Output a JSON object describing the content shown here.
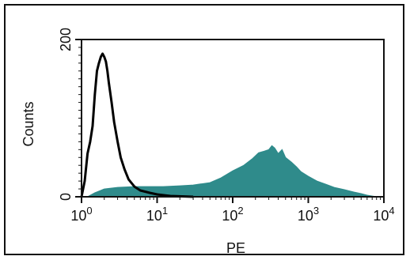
{
  "chart_data": {
    "type": "area",
    "title": "",
    "xlabel": "PE",
    "ylabel": "Counts",
    "x_scale": "log",
    "xlim": [
      1,
      10000
    ],
    "ylim": [
      0,
      200
    ],
    "x_ticks": [
      {
        "value": 1,
        "base": "10",
        "exp": "0"
      },
      {
        "value": 10,
        "base": "10",
        "exp": "1"
      },
      {
        "value": 100,
        "base": "10",
        "exp": "2"
      },
      {
        "value": 1000,
        "base": "10",
        "exp": "3"
      },
      {
        "value": 10000,
        "base": "10",
        "exp": "4"
      }
    ],
    "y_ticks": [
      {
        "value": 0,
        "label": "0"
      },
      {
        "value": 200,
        "label": "200"
      }
    ],
    "grid": false,
    "series": [
      {
        "style": "filled",
        "color": "#2f8b8b",
        "x": [
          1.2,
          1.5,
          2,
          3,
          5,
          8,
          12,
          20,
          30,
          50,
          70,
          100,
          140,
          180,
          220,
          260,
          300,
          330,
          360,
          400,
          450,
          500,
          600,
          700,
          800,
          1000,
          1300,
          1700,
          2200,
          3000,
          4000,
          5000,
          6000,
          8000
        ],
        "y": [
          0,
          5,
          10,
          12,
          13,
          13,
          13,
          14,
          15,
          18,
          24,
          33,
          40,
          48,
          56,
          58,
          60,
          65,
          62,
          55,
          60,
          50,
          44,
          38,
          32,
          26,
          20,
          16,
          12,
          9,
          6,
          4,
          2,
          0
        ]
      },
      {
        "style": "line",
        "color": "#000000",
        "x": [
          1.0,
          1.1,
          1.2,
          1.3,
          1.4,
          1.5,
          1.6,
          1.7,
          1.8,
          1.9,
          2.0,
          2.1,
          2.2,
          2.3,
          2.5,
          2.7,
          3.0,
          3.3,
          3.7,
          4.2,
          5,
          6,
          8,
          10,
          15,
          30
        ],
        "y": [
          0,
          20,
          55,
          70,
          90,
          130,
          160,
          170,
          178,
          182,
          178,
          172,
          160,
          145,
          120,
          95,
          70,
          50,
          35,
          22,
          13,
          8,
          5,
          3,
          1,
          0
        ]
      }
    ]
  }
}
